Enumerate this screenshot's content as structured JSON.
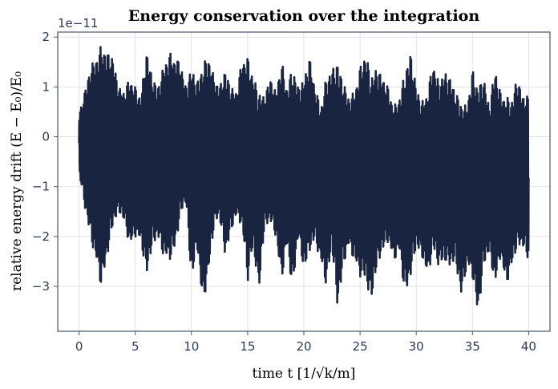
{
  "chart_data": {
    "type": "line",
    "title": "Energy conservation over the integration",
    "xlabel": "time  t  [1/√k/m]",
    "ylabel": "relative energy drift  (E − E₀)/E₀",
    "offset_label": "1e−11",
    "xlim": [
      -1.9,
      41.9
    ],
    "ylim": [
      -3.9,
      2.1
    ],
    "x_ticks": [
      0,
      5,
      10,
      15,
      20,
      25,
      30,
      35,
      40
    ],
    "x_tick_labels": [
      "0",
      "5",
      "10",
      "15",
      "20",
      "25",
      "30",
      "35",
      "40"
    ],
    "y_ticks": [
      -3,
      -2,
      -1,
      0,
      1,
      2
    ],
    "y_tick_labels": [
      "−3",
      "−2",
      "−1",
      "0",
      "1",
      "2"
    ],
    "grid": true,
    "series_color": "#182440",
    "series": [
      {
        "x": [
          0,
          0.5,
          1,
          1.5,
          2,
          2.5,
          3,
          3.5,
          4,
          4.5,
          5,
          5.5,
          6,
          6.5,
          7,
          7.5,
          8,
          8.5,
          9,
          9.5,
          10,
          10.5,
          11,
          11.5,
          12,
          12.5,
          13,
          13.5,
          14,
          14.5,
          15,
          15.5,
          16,
          16.5,
          17,
          17.5,
          18,
          18.5,
          19,
          19.5,
          20,
          20.5,
          21,
          21.5,
          22,
          22.5,
          23,
          23.5,
          24,
          24.5,
          25,
          25.5,
          26,
          26.5,
          27,
          27.5,
          28,
          28.5,
          29,
          29.5,
          30,
          30.5,
          31,
          31.5,
          32,
          32.5,
          33,
          33.5,
          34,
          34.5,
          35,
          35.5,
          36,
          36.5,
          37,
          37.5,
          38,
          38.5,
          39,
          39.5,
          40
        ],
        "y_max": [
          0.45,
          0.9,
          1.4,
          1.6,
          1.85,
          1.7,
          1.6,
          1.0,
          0.9,
          1.2,
          1.0,
          0.8,
          1.75,
          1.2,
          1.0,
          1.4,
          1.7,
          1.6,
          1.5,
          1.0,
          1.4,
          1.1,
          1.45,
          1.65,
          1.2,
          1.0,
          1.35,
          1.0,
          0.9,
          1.55,
          1.6,
          1.2,
          0.9,
          0.8,
          1.2,
          0.9,
          1.55,
          1.0,
          1.4,
          1.0,
          1.15,
          1.6,
          1.0,
          0.6,
          1.2,
          1.35,
          1.5,
          1.1,
          0.8,
          0.9,
          1.4,
          1.7,
          1.2,
          1.4,
          1.2,
          1.0,
          0.6,
          0.8,
          1.3,
          1.7,
          1.0,
          0.7,
          0.9,
          1.5,
          1.1,
          1.3,
          1.2,
          0.9,
          0.7,
          0.6,
          1.35,
          1.0,
          1.2,
          0.6,
          1.4,
          0.9,
          0.8,
          0.75,
          1.2,
          0.8,
          0.85
        ],
        "y_min": [
          -0.7,
          -1.4,
          -2.0,
          -2.5,
          -3.05,
          -2.4,
          -1.8,
          -1.5,
          -1.7,
          -2.2,
          -2.0,
          -2.1,
          -2.8,
          -2.2,
          -2.0,
          -2.4,
          -2.5,
          -2.3,
          -1.6,
          -1.3,
          -2.9,
          -2.2,
          -3.4,
          -2.8,
          -1.8,
          -1.6,
          -2.4,
          -1.9,
          -1.6,
          -1.8,
          -2.9,
          -2.2,
          -3.1,
          -1.8,
          -1.7,
          -2.0,
          -2.9,
          -2.2,
          -3.1,
          -2.0,
          -2.7,
          -2.3,
          -2.1,
          -2.5,
          -3.0,
          -2.2,
          -3.45,
          -2.6,
          -2.2,
          -2.5,
          -2.8,
          -2.9,
          -3.3,
          -2.6,
          -2.3,
          -2.1,
          -2.5,
          -2.3,
          -3.2,
          -2.8,
          -2.2,
          -2.4,
          -2.8,
          -2.3,
          -2.6,
          -2.5,
          -2.6,
          -2.5,
          -3.2,
          -2.6,
          -2.8,
          -3.6,
          -2.6,
          -2.3,
          -3.0,
          -2.4,
          -3.0,
          -2.6,
          -2.2,
          -2.2,
          -2.5
        ]
      }
    ]
  }
}
